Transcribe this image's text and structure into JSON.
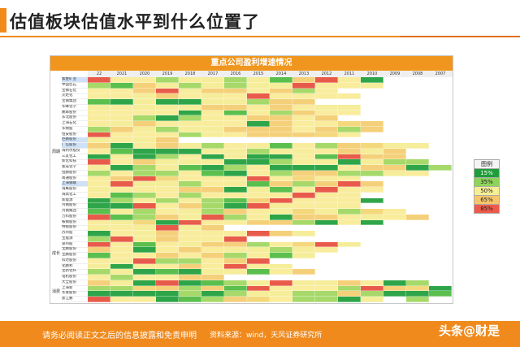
{
  "slide": {
    "title": "估值板块估值水平到什么位置了",
    "footer_disclaimer": "请务必阅读正文之后的信息披露和免责申明",
    "footer_source": "资料来源：wind，天风证券研究所",
    "watermark": "头条@财是"
  },
  "table": {
    "title": "重点公司盈利增速情况",
    "years": [
      "22",
      "2021",
      "2020",
      "2019",
      "2018",
      "2017",
      "2016",
      "2015",
      "2014",
      "2013",
      "2012",
      "2011",
      "2010",
      "2009",
      "2008",
      "2007"
    ],
    "groups": [
      {
        "label": "周期",
        "start": 0,
        "count": 27
      },
      {
        "label": "成长",
        "start": 27,
        "count": 10
      },
      {
        "label": "消费",
        "start": 37,
        "count": 4
      }
    ],
    "companies": [
      "紫金矿业",
      "中国巨石",
      "宝钢石化",
      "火炬化",
      "宝钢集团",
      "华峰化学",
      "鹏辉股份",
      "东北股份",
      "上海石化",
      "华锦股",
      "恒安股份",
      "巨鹏股份",
      "广信股份",
      "海利尔股份",
      "三友化工",
      "新化科技",
      "紫成化学",
      "恒鹏股份",
      "南通股份",
      "上海钢联",
      "海鹰股份",
      "海高化工",
      "新能源",
      "河钢股份",
      "河钢集团",
      "万科股份",
      "鞍钢股份",
      "特级股份",
      "苏州股",
      "宝能源",
      "泉州股",
      "宝鹏股份",
      "宝鹏股份",
      "科达股份",
      "化鹏利",
      "宝新化纤",
      "电机股份",
      "大全股份",
      "上海新",
      "华发股份",
      "浙江鹏"
    ],
    "selected_rows": [
      0,
      11,
      12,
      19
    ],
    "cells": [
      "5552332324551000",
      "2243232335553000",
      "5545344542500000",
      "5534535555550000",
      "2131133244000000",
      "3533344545330000",
      "5555152524550000",
      "5521255445400000",
      "5345555145534000",
      "2432334445424000",
      "5555235444350000",
      "3534000000000000",
      "4154325325243330",
      "5211133233543400",
      "1312513115254400",
      "5543331123313220",
      "3123212511154412",
      "2522521524422350",
      "5453555553550000",
      "5533253242454000",
      "3555441325555000",
      "5225255555550000",
      "1252522455551000",
      "1155421535550000",
      "2325324533323500",
      "5224352514453540",
      "5331555442151000",
      "3535340000000000",
      "1534555543000000",
      "2534555000000000",
      "5525344253530000",
      "4515453323500000",
      "2554542523000000",
      "5352254500000000",
      "3155455530000000",
      "2312133254000000",
      "5255440000000000",
      "4315122353345120",
      "2234242555525431",
      "1111212332242112",
      "5551224352213020"
    ]
  },
  "legend": {
    "title": "图例",
    "items": [
      {
        "label": "15%",
        "color": "#1f9d3a"
      },
      {
        "label": "35%",
        "color": "#8ed45a"
      },
      {
        "label": "50%",
        "color": "#f7ef93"
      },
      {
        "label": "65%",
        "color": "#f7c66a"
      },
      {
        "label": "85%",
        "color": "#ee5a4a"
      }
    ]
  }
}
